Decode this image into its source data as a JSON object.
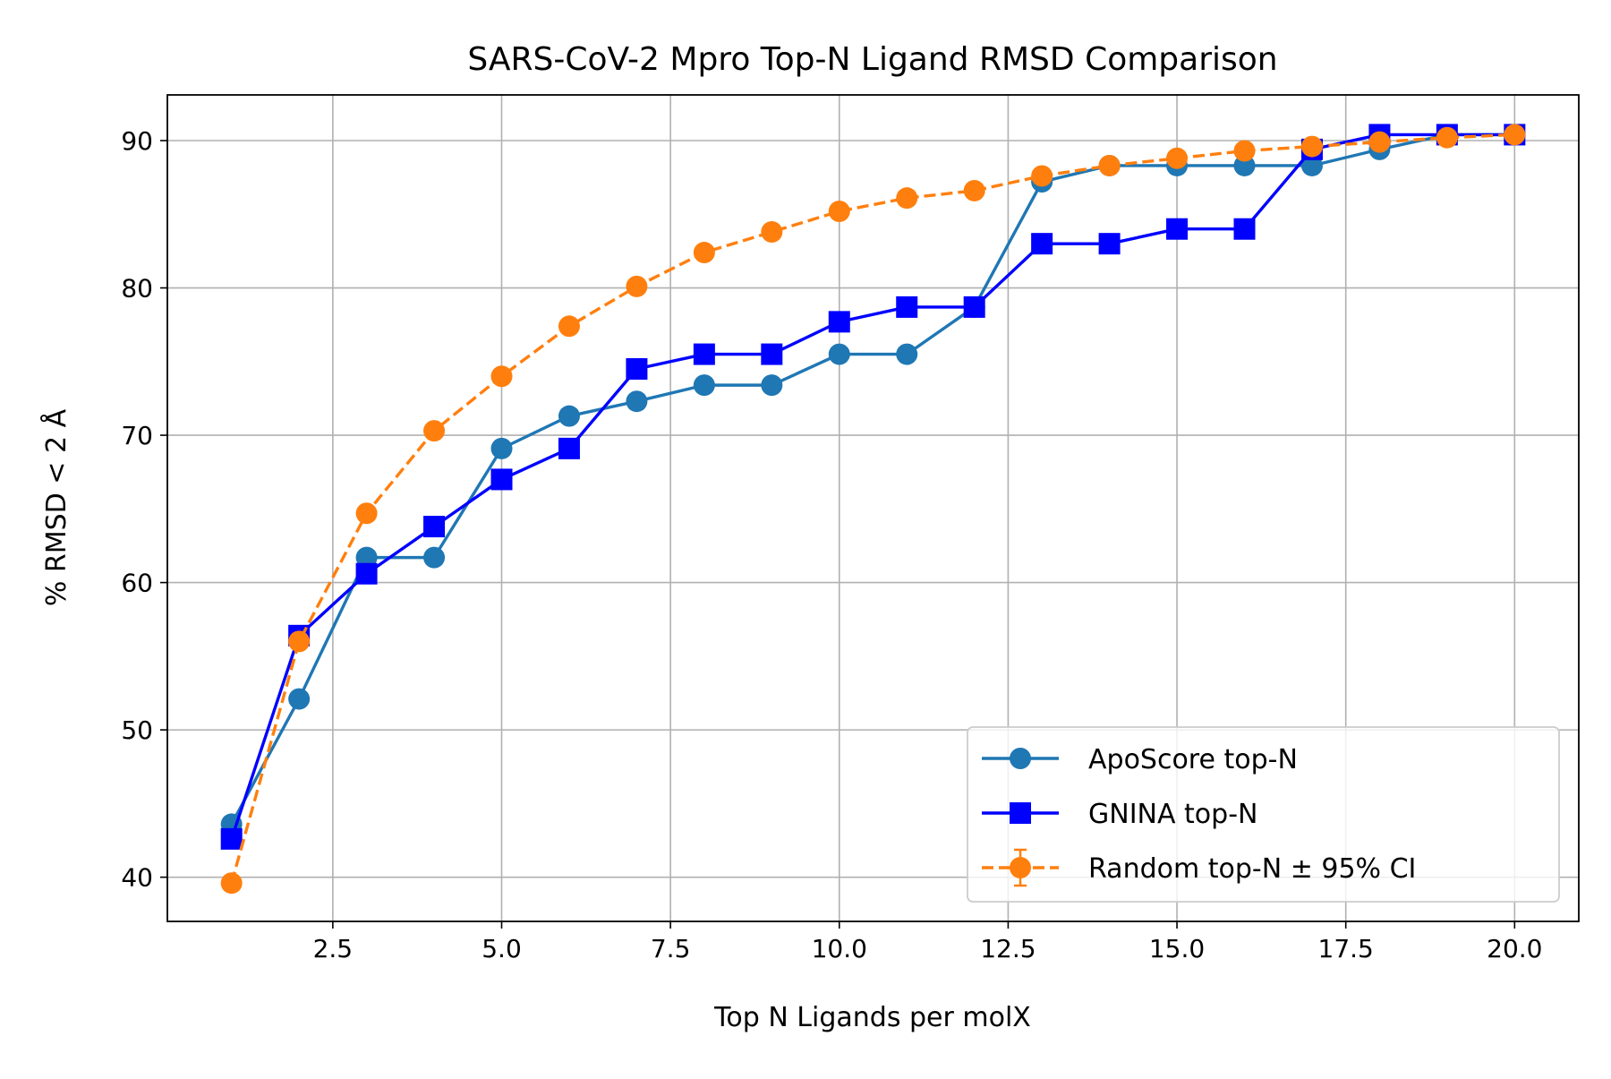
{
  "chart_data": {
    "type": "line",
    "title": "SARS-CoV-2 Mpro Top-N Ligand RMSD Comparison",
    "xlabel": "Top N Ligands per molX",
    "ylabel": "% RMSD < 2 Å",
    "xlim": [
      0.05,
      20.95
    ],
    "ylim": [
      37.0,
      93.1
    ],
    "xticks": [
      2.5,
      5.0,
      7.5,
      10.0,
      12.5,
      15.0,
      17.5,
      20.0
    ],
    "xtick_labels": [
      "2.5",
      "5.0",
      "7.5",
      "10.0",
      "12.5",
      "15.0",
      "17.5",
      "20.0"
    ],
    "yticks": [
      40,
      50,
      60,
      70,
      80,
      90
    ],
    "ytick_labels": [
      "40",
      "50",
      "60",
      "70",
      "80",
      "90"
    ],
    "grid": true,
    "legend_position": "lower-right",
    "x": [
      1,
      2,
      3,
      4,
      5,
      6,
      7,
      8,
      9,
      10,
      11,
      12,
      13,
      14,
      15,
      16,
      17,
      18,
      19,
      20
    ],
    "series": [
      {
        "name": "ApoScore top-N",
        "color": "#1f77b4",
        "marker": "circle",
        "linestyle": "solid",
        "values": [
          43.6,
          52.1,
          61.7,
          61.7,
          69.1,
          71.3,
          72.3,
          73.4,
          73.4,
          75.5,
          75.5,
          78.7,
          87.2,
          88.3,
          88.3,
          88.3,
          88.3,
          89.4,
          90.4,
          90.4
        ]
      },
      {
        "name": "GNINA top-N",
        "color": "#0000ff",
        "marker": "square",
        "linestyle": "solid",
        "values": [
          42.6,
          56.4,
          60.6,
          63.8,
          67.0,
          69.1,
          74.5,
          75.5,
          75.5,
          77.7,
          78.7,
          78.7,
          83.0,
          83.0,
          84.0,
          84.0,
          89.4,
          90.4,
          90.4,
          90.4
        ]
      },
      {
        "name": "Random top-N ± 95% CI",
        "color": "#ff7f0e",
        "marker": "circle",
        "linestyle": "dashed",
        "values": [
          39.6,
          56.0,
          64.7,
          70.3,
          74.0,
          77.4,
          80.1,
          82.4,
          83.8,
          85.2,
          86.1,
          86.6,
          87.6,
          88.3,
          88.8,
          89.3,
          89.6,
          89.9,
          90.2,
          90.4
        ],
        "ci_low": [
          39.4,
          55.6,
          64.5,
          70.1,
          73.8,
          77.2,
          79.9,
          82.2,
          83.6,
          85.0,
          85.9,
          86.5,
          87.5,
          88.2,
          88.7,
          89.2,
          89.5,
          89.8,
          90.1,
          90.4
        ],
        "ci_high": [
          39.8,
          56.4,
          64.9,
          70.5,
          74.2,
          77.6,
          80.3,
          82.6,
          84.0,
          85.4,
          86.3,
          86.7,
          87.7,
          88.4,
          88.9,
          89.4,
          89.7,
          90.0,
          90.3,
          90.4
        ]
      }
    ]
  }
}
